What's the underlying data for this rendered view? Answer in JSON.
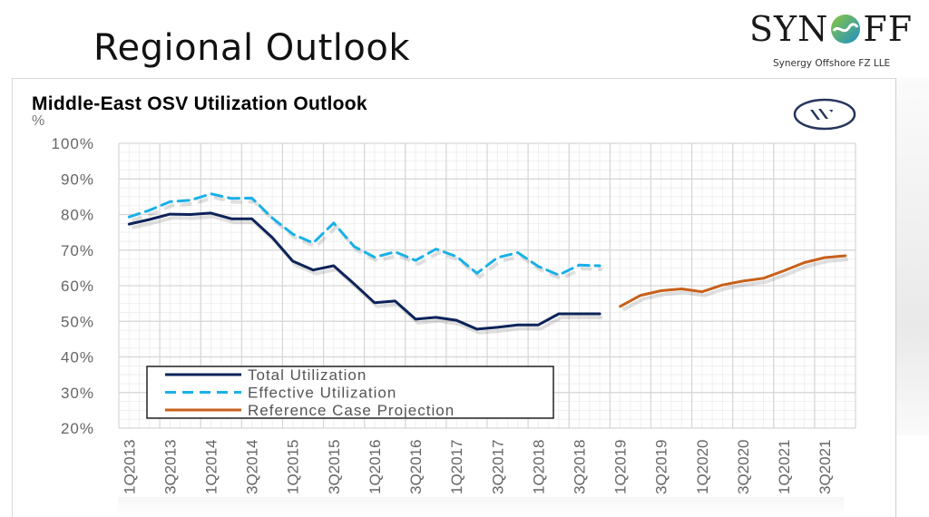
{
  "slide": {
    "title": "Regional Outlook"
  },
  "logo": {
    "wordmark_left": "SYN",
    "wordmark_right": "FF",
    "subtitle": "Synergy Offshore FZ LLE",
    "icon": "swirl-o-icon"
  },
  "badge": {
    "icon": "w-circle-logo-icon"
  },
  "chart_data": {
    "type": "line",
    "title": "Middle-East OSV Utilization Outlook",
    "ylabel": "%",
    "xlabel": "",
    "ylim": [
      20,
      100
    ],
    "yticks": [
      100,
      90,
      80,
      70,
      60,
      50,
      40,
      30,
      20
    ],
    "ytick_labels": [
      "100%",
      "90%",
      "80%",
      "70%",
      "60%",
      "50%",
      "40%",
      "30%",
      "20%"
    ],
    "grid": true,
    "x": [
      "1Q2013",
      "2Q2013",
      "3Q2013",
      "4Q2013",
      "1Q2014",
      "2Q2014",
      "3Q2014",
      "4Q2014",
      "1Q2015",
      "2Q2015",
      "3Q2015",
      "4Q2015",
      "1Q2016",
      "2Q2016",
      "3Q2016",
      "4Q2016",
      "1Q2017",
      "2Q2017",
      "3Q2017",
      "4Q2017",
      "1Q2018",
      "2Q2018",
      "3Q2018",
      "4Q2018",
      "1Q2019",
      "2Q2019",
      "3Q2019",
      "4Q2019",
      "1Q2020",
      "2Q2020",
      "3Q2020",
      "4Q2020",
      "1Q2021",
      "2Q2021",
      "3Q2021",
      "4Q2021"
    ],
    "xtick_labels": [
      "1Q2013",
      "3Q2013",
      "1Q2014",
      "3Q2014",
      "1Q2015",
      "3Q2015",
      "1Q2016",
      "3Q2016",
      "1Q2017",
      "3Q2017",
      "1Q2018",
      "3Q2018",
      "1Q2019",
      "3Q2019",
      "1Q2020",
      "3Q2020",
      "1Q2021",
      "3Q2021"
    ],
    "legend_position": "bottom-left",
    "series": [
      {
        "name": "Total Utilization",
        "color": "#0d2359",
        "style": "solid",
        "start_index": 0,
        "values": [
          77.3,
          78.6,
          80.1,
          80.0,
          80.4,
          78.8,
          78.8,
          73.5,
          66.9,
          64.4,
          65.6,
          60.5,
          55.2,
          55.7,
          50.6,
          51.1,
          50.3,
          47.8,
          48.3,
          49.0,
          49.0,
          52.1,
          52.1,
          52.1
        ]
      },
      {
        "name": "Effective Utilization",
        "color": "#1ab0e8",
        "style": "dashed",
        "start_index": 0,
        "values": [
          79.3,
          81.2,
          83.6,
          84.0,
          85.8,
          84.5,
          84.6,
          79.0,
          74.5,
          72.0,
          77.6,
          71.0,
          68.0,
          69.5,
          67.1,
          70.3,
          68.2,
          63.5,
          67.9,
          69.3,
          65.4,
          63.0,
          65.8,
          65.6
        ]
      },
      {
        "name": "Reference Case Projection",
        "color": "#c8601a",
        "style": "solid",
        "start_index": 24,
        "values": [
          54.2,
          57.3,
          58.6,
          59.1,
          58.3,
          60.2,
          61.3,
          62.1,
          64.2,
          66.5,
          67.9,
          68.4
        ]
      }
    ]
  }
}
